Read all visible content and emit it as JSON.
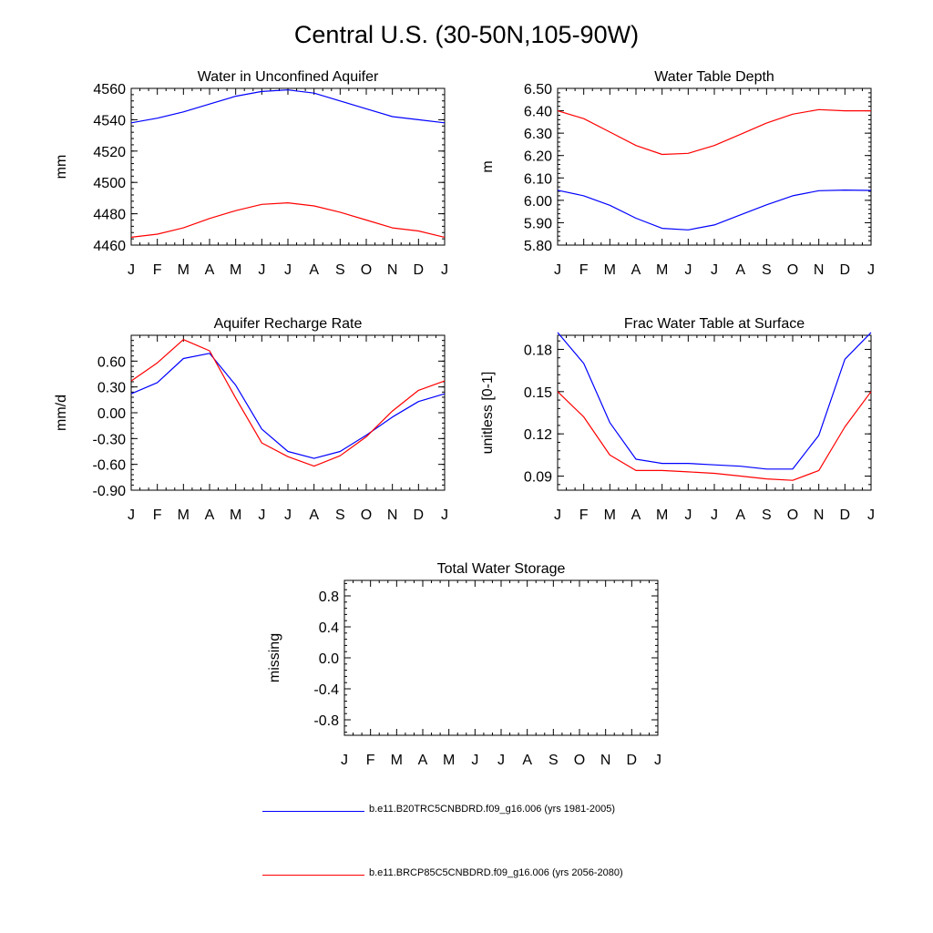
{
  "title": "Central U.S. (30-50N,105-90W)",
  "colors": {
    "series1": "#0000ff",
    "series2": "#ff0000",
    "axis": "#000000"
  },
  "legend": [
    {
      "label": "b.e11.B20TRC5CNBDRD.f09_g16.006 (yrs 1981-2005)",
      "color": "#0000ff"
    },
    {
      "label": "b.e11.BRCP85C5CNBDRD.f09_g16.006 (yrs 2056-2080)",
      "color": "#ff0000"
    }
  ],
  "chart_data": [
    {
      "type": "line",
      "title": "Water in Unconfined Aquifer",
      "ylabel": "mm",
      "categories": [
        "J",
        "F",
        "M",
        "A",
        "M",
        "J",
        "J",
        "A",
        "S",
        "O",
        "N",
        "D",
        "J"
      ],
      "ylim": [
        4460,
        4560
      ],
      "yticks": [
        "4460",
        "4480",
        "4500",
        "4520",
        "4540",
        "4560"
      ],
      "series": [
        {
          "name": "b.e11.B20TRC5CNBDRD.f09_g16.006 (yrs 1981-2005)",
          "color": "#0000ff",
          "values": [
            4538,
            4541,
            4545,
            4550,
            4555,
            4558,
            4559,
            4557,
            4552,
            4547,
            4542,
            4540,
            4538
          ]
        },
        {
          "name": "b.e11.BRCP85C5CNBDRD.f09_g16.006 (yrs 2056-2080)",
          "color": "#ff0000",
          "values": [
            4465,
            4467,
            4471,
            4477,
            4482,
            4486,
            4487,
            4485,
            4481,
            4476,
            4471,
            4469,
            4465
          ]
        }
      ]
    },
    {
      "type": "line",
      "title": "Water Table Depth",
      "ylabel": "m",
      "categories": [
        "J",
        "F",
        "M",
        "A",
        "M",
        "J",
        "J",
        "A",
        "S",
        "O",
        "N",
        "D",
        "J"
      ],
      "ylim": [
        5.8,
        6.5
      ],
      "yticks": [
        "5.80",
        "5.90",
        "6.00",
        "6.10",
        "6.20",
        "6.30",
        "6.40",
        "6.50"
      ],
      "series": [
        {
          "name": "b.e11.B20TRC5CNBDRD.f09_g16.006 (yrs 1981-2005)",
          "color": "#0000ff",
          "values": [
            6.045,
            6.02,
            5.978,
            5.92,
            5.875,
            5.868,
            5.89,
            5.935,
            5.98,
            6.02,
            6.043,
            6.046,
            6.044
          ]
        },
        {
          "name": "b.e11.BRCP85C5CNBDRD.f09_g16.006 (yrs 2056-2080)",
          "color": "#ff0000",
          "values": [
            6.4,
            6.365,
            6.305,
            6.245,
            6.205,
            6.21,
            6.245,
            6.295,
            6.345,
            6.385,
            6.405,
            6.4,
            6.4
          ]
        }
      ]
    },
    {
      "type": "line",
      "title": "Aquifer Recharge Rate",
      "ylabel": "mm/d",
      "categories": [
        "J",
        "F",
        "M",
        "A",
        "M",
        "J",
        "J",
        "A",
        "S",
        "O",
        "N",
        "D",
        "J"
      ],
      "ylim": [
        -0.9,
        0.9
      ],
      "yticks": [
        "-0.90",
        "-0.60",
        "-0.30",
        "0.00",
        "0.30",
        "0.60"
      ],
      "series": [
        {
          "name": "b.e11.B20TRC5CNBDRD.f09_g16.006 (yrs 1981-2005)",
          "color": "#0000ff",
          "values": [
            0.22,
            0.35,
            0.63,
            0.69,
            0.32,
            -0.19,
            -0.45,
            -0.53,
            -0.45,
            -0.26,
            -0.05,
            0.13,
            0.22
          ]
        },
        {
          "name": "b.e11.BRCP85C5CNBDRD.f09_g16.006 (yrs 2056-2080)",
          "color": "#ff0000",
          "values": [
            0.37,
            0.58,
            0.85,
            0.72,
            0.17,
            -0.35,
            -0.51,
            -0.62,
            -0.5,
            -0.28,
            0.02,
            0.26,
            0.37
          ]
        }
      ]
    },
    {
      "type": "line",
      "title": "Frac Water Table at Surface",
      "ylabel": "unitless [0-1]",
      "categories": [
        "J",
        "F",
        "M",
        "A",
        "M",
        "J",
        "J",
        "A",
        "S",
        "O",
        "N",
        "D",
        "J"
      ],
      "ylim": [
        0.08,
        0.19
      ],
      "yticks": [
        "0.09",
        "0.12",
        "0.15",
        "0.18"
      ],
      "series": [
        {
          "name": "b.e11.B20TRC5CNBDRD.f09_g16.006 (yrs 1981-2005)",
          "color": "#0000ff",
          "values": [
            0.192,
            0.17,
            0.128,
            0.102,
            0.099,
            0.099,
            0.098,
            0.097,
            0.095,
            0.095,
            0.119,
            0.173,
            0.192
          ]
        },
        {
          "name": "b.e11.BRCP85C5CNBDRD.f09_g16.006 (yrs 2056-2080)",
          "color": "#ff0000",
          "values": [
            0.15,
            0.132,
            0.105,
            0.094,
            0.094,
            0.093,
            0.092,
            0.09,
            0.088,
            0.087,
            0.094,
            0.125,
            0.15
          ]
        }
      ]
    },
    {
      "type": "line",
      "title": "Total Water Storage",
      "ylabel": "missing",
      "categories": [
        "J",
        "F",
        "M",
        "A",
        "M",
        "J",
        "J",
        "A",
        "S",
        "O",
        "N",
        "D",
        "J"
      ],
      "ylim": [
        -1.0,
        1.0
      ],
      "yticks": [
        "-0.8",
        "-0.4",
        "0.0",
        "0.4",
        "0.8"
      ],
      "series": []
    }
  ]
}
